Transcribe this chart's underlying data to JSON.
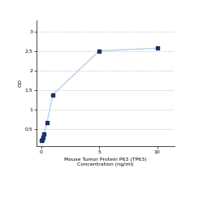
{
  "x": [
    0,
    0.0625,
    0.125,
    0.25,
    0.5,
    1,
    5,
    10
  ],
  "y": [
    0.19,
    0.22,
    0.28,
    0.37,
    0.65,
    1.38,
    2.51,
    2.58
  ],
  "xlabel_line1": "Mouse Tumor Protein P63 (TP63)",
  "xlabel_line2": "Concentration (ng/ml)",
  "ylabel": "OD",
  "xtick_vals": [
    0,
    5,
    10
  ],
  "xtick_labels": [
    "0",
    "5",
    "10"
  ],
  "ytick_vals": [
    0.5,
    1.0,
    1.5,
    2.0,
    2.5,
    3.0
  ],
  "ytick_labels": [
    "0.5",
    "1",
    "1.5",
    "2",
    "2.5",
    "3"
  ],
  "xlim": [
    -0.4,
    11.5
  ],
  "ylim": [
    0.05,
    3.3
  ],
  "line_color": "#b8d0e8",
  "marker_color": "#1a3366",
  "marker_size": 3.5,
  "line_width": 1.0,
  "background_color": "#ffffff",
  "grid_color": "#cccccc",
  "label_fontsize": 4.5,
  "tick_fontsize": 4.5
}
